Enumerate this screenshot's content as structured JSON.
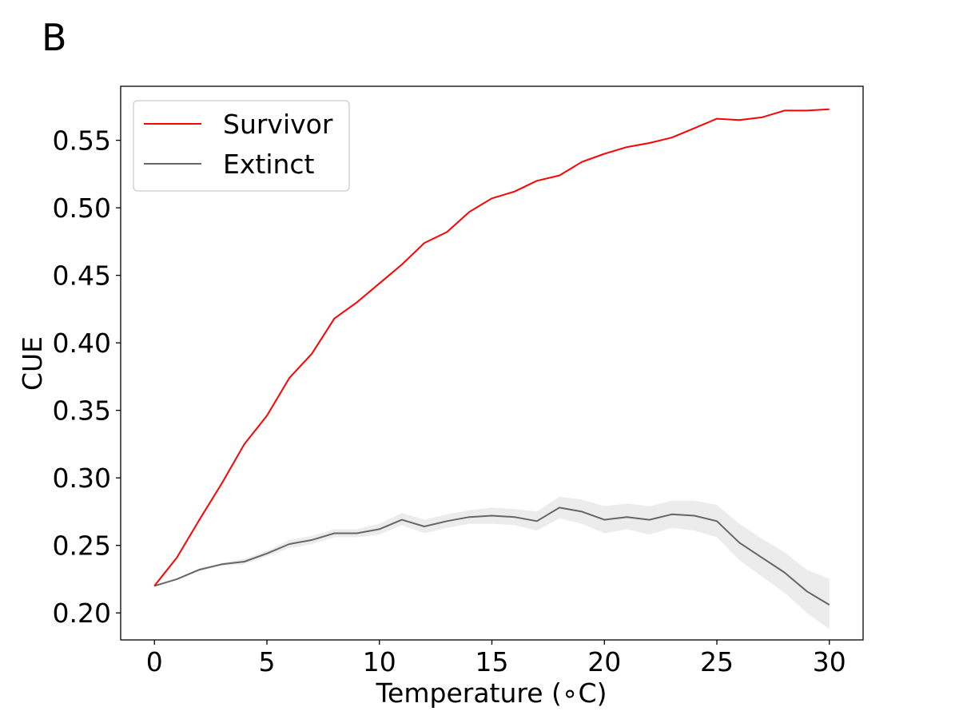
{
  "panel_label": "B",
  "chart_data": {
    "type": "line",
    "xlabel": "Temperature (∘C)",
    "ylabel": "CUE",
    "xlim": [
      -1.5,
      31.5
    ],
    "ylim": [
      0.18,
      0.59
    ],
    "xticks": [
      0,
      5,
      10,
      15,
      20,
      25,
      30
    ],
    "xtick_labels": [
      "0",
      "5",
      "10",
      "15",
      "20",
      "25",
      "30"
    ],
    "yticks": [
      0.2,
      0.25,
      0.3,
      0.35,
      0.4,
      0.45,
      0.5,
      0.55
    ],
    "ytick_labels": [
      "0.20",
      "0.25",
      "0.30",
      "0.35",
      "0.40",
      "0.45",
      "0.50",
      "0.55"
    ],
    "grid": false,
    "legend": {
      "position": "top-left"
    },
    "x": [
      0,
      1,
      2,
      3,
      4,
      5,
      6,
      7,
      8,
      9,
      10,
      11,
      12,
      13,
      14,
      15,
      16,
      17,
      18,
      19,
      20,
      21,
      22,
      23,
      24,
      25,
      26,
      27,
      28,
      29,
      30
    ],
    "series": [
      {
        "name": "Survivor",
        "color": "#ff0000",
        "values": [
          0.22,
          0.241,
          0.269,
          0.296,
          0.325,
          0.346,
          0.374,
          0.392,
          0.418,
          0.43,
          0.444,
          0.458,
          0.474,
          0.482,
          0.497,
          0.507,
          0.512,
          0.52,
          0.524,
          0.534,
          0.54,
          0.545,
          0.548,
          0.552,
          0.559,
          0.566,
          0.565,
          0.567,
          0.572,
          0.572,
          0.573
        ]
      },
      {
        "name": "Extinct",
        "color": "#666666",
        "band_color": "#d9d9d9",
        "values": [
          0.22,
          0.225,
          0.232,
          0.236,
          0.238,
          0.244,
          0.251,
          0.254,
          0.259,
          0.259,
          0.262,
          0.269,
          0.264,
          0.268,
          0.271,
          0.272,
          0.271,
          0.268,
          0.278,
          0.275,
          0.269,
          0.271,
          0.269,
          0.273,
          0.272,
          0.268,
          0.252,
          0.241,
          0.23,
          0.216,
          0.206
        ],
        "lower": [
          0.22,
          0.225,
          0.231,
          0.235,
          0.236,
          0.242,
          0.248,
          0.251,
          0.256,
          0.256,
          0.258,
          0.265,
          0.259,
          0.263,
          0.266,
          0.266,
          0.265,
          0.261,
          0.27,
          0.266,
          0.259,
          0.262,
          0.258,
          0.263,
          0.261,
          0.256,
          0.239,
          0.227,
          0.215,
          0.2,
          0.188
        ],
        "upper": [
          0.22,
          0.225,
          0.233,
          0.237,
          0.24,
          0.246,
          0.254,
          0.257,
          0.262,
          0.262,
          0.266,
          0.274,
          0.269,
          0.273,
          0.276,
          0.278,
          0.277,
          0.275,
          0.286,
          0.284,
          0.279,
          0.281,
          0.279,
          0.283,
          0.283,
          0.28,
          0.266,
          0.255,
          0.245,
          0.232,
          0.225
        ]
      }
    ]
  }
}
